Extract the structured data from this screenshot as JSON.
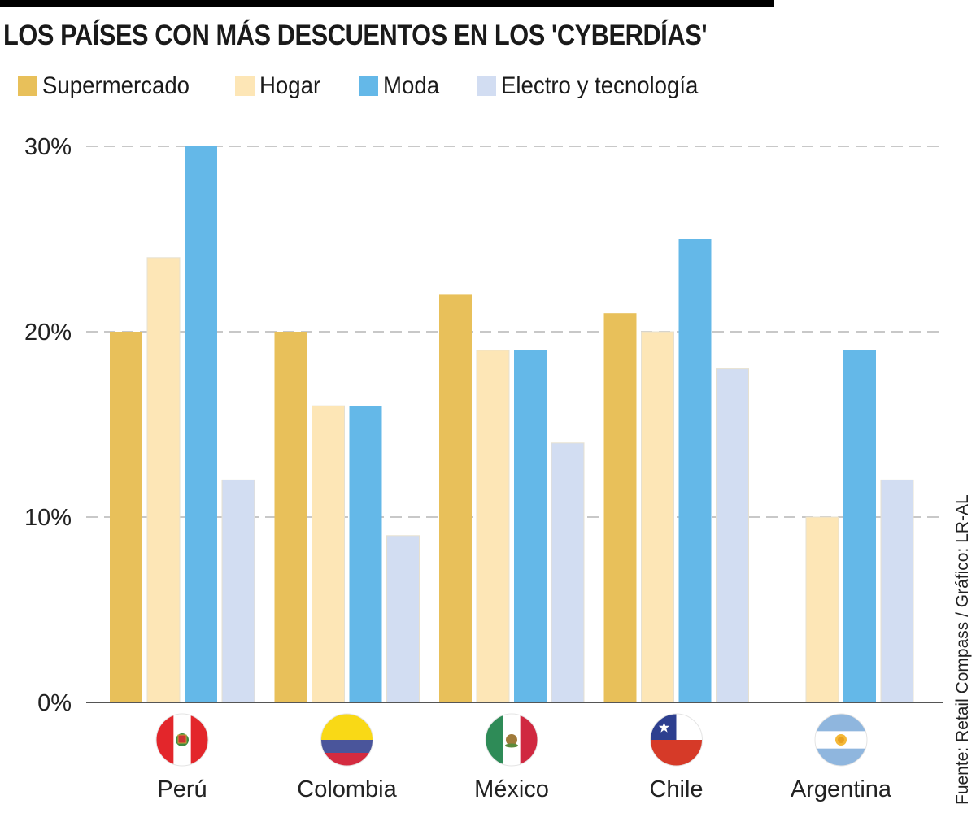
{
  "title": "LOS PAÍSES CON MÁS DESCUENTOS EN LOS 'CYBERDÍAS'",
  "source": "Fuente: Retail Compass / Gráfico: LR-AL",
  "legend": [
    {
      "label": "Supermercado",
      "color": "#E8C05A"
    },
    {
      "label": "Hogar",
      "color": "#FDE6B6"
    },
    {
      "label": "Moda",
      "color": "#64B8E8"
    },
    {
      "label": "Electro y tecnología",
      "color": "#D2DDF2"
    }
  ],
  "chart_data": {
    "type": "bar",
    "title": "LOS PAÍSES CON MÁS DESCUENTOS EN LOS 'CYBERDÍAS'",
    "xlabel": "",
    "ylabel": "",
    "ylim": [
      0,
      30
    ],
    "yticks": [
      0,
      10,
      20,
      30
    ],
    "ytick_labels": [
      "0%",
      "10%",
      "20%",
      "30%"
    ],
    "grid": true,
    "legend_position": "top-left",
    "categories": [
      "Perú",
      "Colombia",
      "México",
      "Chile",
      "Argentina"
    ],
    "series": [
      {
        "name": "Supermercado",
        "color": "#E8C05A",
        "values": [
          20,
          20,
          22,
          21,
          0
        ]
      },
      {
        "name": "Hogar",
        "color": "#FDE6B6",
        "values": [
          24,
          16,
          19,
          20,
          10
        ]
      },
      {
        "name": "Moda",
        "color": "#64B8E8",
        "values": [
          30,
          16,
          19,
          25,
          19
        ]
      },
      {
        "name": "Electro y tecnología",
        "color": "#D2DDF2",
        "values": [
          12,
          9,
          14,
          18,
          12
        ]
      }
    ],
    "flags": [
      "peru-flag",
      "colombia-flag",
      "mexico-flag",
      "chile-flag",
      "argentina-flag"
    ]
  }
}
